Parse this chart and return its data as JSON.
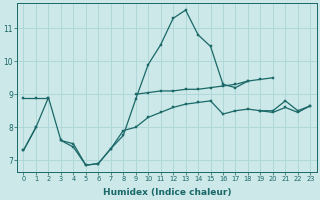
{
  "title": "",
  "xlabel": "Humidex (Indice chaleur)",
  "ylabel": "",
  "background_color": "#cce8e8",
  "grid_color": "#b0d8d8",
  "line_color": "#1a6868",
  "xlim": [
    -0.5,
    23.5
  ],
  "ylim": [
    6.65,
    11.75
  ],
  "xticks": [
    0,
    1,
    2,
    3,
    4,
    5,
    6,
    7,
    8,
    9,
    10,
    11,
    12,
    13,
    14,
    15,
    16,
    17,
    18,
    19,
    20,
    21,
    22,
    23
  ],
  "yticks": [
    7,
    8,
    9,
    10,
    11
  ],
  "lines": [
    {
      "x": [
        0,
        1,
        2,
        3,
        4,
        5,
        6,
        7,
        8,
        9,
        10,
        11,
        12,
        13,
        14,
        15,
        16,
        17,
        18,
        19,
        20,
        21,
        22,
        23
      ],
      "y": [
        7.3,
        8.0,
        8.9,
        7.6,
        7.4,
        6.85,
        6.9,
        7.35,
        7.75,
        8.85,
        9.9,
        10.5,
        11.3,
        11.55,
        10.8,
        10.45,
        9.3,
        9.2,
        9.4,
        null,
        null,
        null,
        null,
        null
      ]
    },
    {
      "x": [
        0,
        1,
        2,
        3,
        4,
        5,
        6,
        7,
        8,
        9,
        10,
        11,
        12,
        13,
        14,
        15,
        16,
        17,
        18,
        19,
        20,
        21,
        22,
        23
      ],
      "y": [
        8.9,
        8.9,
        8.9,
        null,
        null,
        null,
        null,
        null,
        null,
        9.0,
        9.05,
        9.1,
        9.1,
        9.15,
        9.15,
        9.2,
        9.25,
        9.3,
        9.4,
        9.45,
        9.5,
        null,
        null,
        null
      ]
    },
    {
      "x": [
        0,
        1,
        2,
        3,
        4,
        5,
        6,
        7,
        8,
        9,
        10,
        11,
        12,
        13,
        14,
        15,
        16,
        17,
        18,
        19,
        20,
        21,
        22,
        23
      ],
      "y": [
        null,
        null,
        null,
        null,
        null,
        null,
        null,
        null,
        null,
        null,
        null,
        null,
        null,
        null,
        null,
        null,
        null,
        null,
        null,
        8.5,
        8.5,
        8.8,
        8.5,
        8.65
      ]
    },
    {
      "x": [
        0,
        1,
        2,
        3,
        4,
        5,
        6,
        7,
        8,
        9,
        10,
        11,
        12,
        13,
        14,
        15,
        16,
        17,
        18,
        19,
        20,
        21,
        22,
        23
      ],
      "y": [
        7.3,
        8.0,
        null,
        7.6,
        7.5,
        6.85,
        6.9,
        7.35,
        7.9,
        8.0,
        8.3,
        8.45,
        8.6,
        8.7,
        8.75,
        8.8,
        8.4,
        8.5,
        8.55,
        8.5,
        8.45,
        8.6,
        8.45,
        8.65
      ]
    }
  ]
}
